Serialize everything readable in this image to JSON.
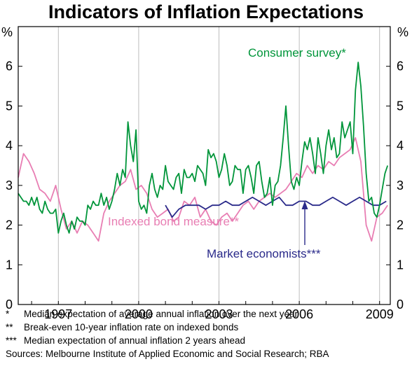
{
  "chart_data": {
    "type": "line",
    "title": "Indicators of Inflation Expectations",
    "ylabel_left": "%",
    "ylabel_right": "%",
    "ylim": [
      0,
      7
    ],
    "yticks": [
      0,
      1,
      2,
      3,
      4,
      5,
      6
    ],
    "xlim": [
      1995.5,
      2009.4
    ],
    "xticks": [
      "1997",
      "2000",
      "2003",
      "2006",
      "2009"
    ],
    "grid": "vertical year lines",
    "series": [
      {
        "name": "Consumer survey*",
        "color": "#00953a",
        "x": [
          1995.5,
          1995.6,
          1995.7,
          1995.8,
          1995.9,
          1996.0,
          1996.1,
          1996.2,
          1996.3,
          1996.4,
          1996.5,
          1996.6,
          1996.7,
          1996.8,
          1996.9,
          1997.0,
          1997.1,
          1997.2,
          1997.3,
          1997.4,
          1997.5,
          1997.6,
          1997.7,
          1997.8,
          1997.9,
          1998.0,
          1998.1,
          1998.2,
          1998.3,
          1998.4,
          1998.5,
          1998.6,
          1998.7,
          1998.8,
          1998.9,
          1999.0,
          1999.1,
          1999.2,
          1999.3,
          1999.4,
          1999.5,
          1999.6,
          1999.7,
          1999.8,
          1999.9,
          2000.0,
          2000.1,
          2000.2,
          2000.3,
          2000.4,
          2000.5,
          2000.6,
          2000.7,
          2000.8,
          2000.9,
          2001.0,
          2001.1,
          2001.2,
          2001.3,
          2001.4,
          2001.5,
          2001.6,
          2001.7,
          2001.8,
          2001.9,
          2002.0,
          2002.1,
          2002.2,
          2002.3,
          2002.4,
          2002.5,
          2002.6,
          2002.7,
          2002.8,
          2002.9,
          2003.0,
          2003.1,
          2003.2,
          2003.3,
          2003.4,
          2003.5,
          2003.6,
          2003.7,
          2003.8,
          2003.9,
          2004.0,
          2004.1,
          2004.2,
          2004.3,
          2004.4,
          2004.5,
          2004.6,
          2004.7,
          2004.8,
          2004.9,
          2005.0,
          2005.1,
          2005.2,
          2005.3,
          2005.4,
          2005.5,
          2005.6,
          2005.7,
          2005.8,
          2005.9,
          2006.0,
          2006.1,
          2006.2,
          2006.3,
          2006.4,
          2006.5,
          2006.6,
          2006.7,
          2006.8,
          2006.9,
          2007.0,
          2007.1,
          2007.2,
          2007.3,
          2007.4,
          2007.5,
          2007.6,
          2007.7,
          2007.8,
          2007.9,
          2008.0,
          2008.1,
          2008.2,
          2008.3,
          2008.4,
          2008.5,
          2008.6,
          2008.7,
          2008.8,
          2008.9,
          2009.0,
          2009.1,
          2009.2,
          2009.3
        ],
        "values": [
          2.8,
          2.7,
          2.6,
          2.6,
          2.5,
          2.7,
          2.5,
          2.7,
          2.4,
          2.3,
          2.6,
          2.4,
          2.3,
          2.3,
          2.4,
          1.8,
          2.1,
          2.3,
          2.0,
          1.8,
          2.1,
          1.9,
          2.2,
          2.1,
          2.1,
          2.0,
          2.5,
          2.4,
          2.6,
          2.5,
          2.5,
          2.8,
          2.5,
          2.7,
          2.4,
          2.6,
          2.9,
          3.3,
          3.0,
          3.4,
          3.2,
          4.6,
          4.0,
          3.6,
          4.4,
          2.6,
          2.4,
          2.5,
          2.3,
          3.0,
          3.3,
          2.9,
          2.7,
          3.0,
          2.9,
          3.5,
          3.1,
          3.0,
          2.9,
          3.2,
          3.3,
          2.8,
          3.4,
          3.2,
          3.2,
          3.3,
          3.1,
          3.5,
          3.4,
          3.3,
          3.0,
          3.9,
          3.7,
          3.8,
          3.6,
          3.2,
          3.4,
          3.8,
          3.5,
          3.0,
          3.1,
          3.5,
          3.4,
          3.4,
          2.8,
          3.4,
          3.5,
          3.2,
          2.8,
          3.5,
          3.6,
          3.1,
          2.7,
          2.8,
          3.2,
          2.5,
          3.0,
          3.1,
          3.5,
          4.2,
          5.0,
          4.0,
          3.1,
          2.9,
          3.2,
          3.0,
          3.6,
          4.1,
          3.9,
          4.2,
          3.8,
          3.3,
          4.2,
          3.8,
          3.3,
          4.0,
          4.4,
          3.9,
          4.2,
          3.7,
          3.8,
          4.6,
          4.2,
          4.4,
          4.6,
          3.8,
          5.4,
          6.1,
          5.5,
          4.5,
          3.3,
          2.6,
          2.7,
          2.3,
          2.2,
          2.5,
          2.9,
          3.3,
          3.5
        ]
      },
      {
        "name": "Indexed bond measure**",
        "color": "#e87eb3",
        "x": [
          1995.5,
          1995.7,
          1995.9,
          1996.1,
          1996.3,
          1996.5,
          1996.7,
          1996.9,
          1997.1,
          1997.3,
          1997.5,
          1997.7,
          1997.9,
          1998.1,
          1998.3,
          1998.5,
          1998.7,
          1998.9,
          1999.1,
          1999.3,
          1999.5,
          1999.7,
          1999.9,
          2000.1,
          2000.3,
          2000.5,
          2000.7,
          2000.9,
          2001.1,
          2001.3,
          2001.5,
          2001.7,
          2001.9,
          2002.1,
          2002.3,
          2002.5,
          2002.7,
          2002.9,
          2003.1,
          2003.3,
          2003.5,
          2003.7,
          2003.9,
          2004.1,
          2004.3,
          2004.5,
          2004.7,
          2004.9,
          2005.1,
          2005.3,
          2005.5,
          2005.7,
          2005.9,
          2006.1,
          2006.3,
          2006.5,
          2006.7,
          2006.9,
          2007.1,
          2007.3,
          2007.5,
          2007.7,
          2007.9,
          2008.1,
          2008.3,
          2008.5,
          2008.7,
          2008.9,
          2009.1,
          2009.3
        ],
        "values": [
          3.2,
          3.8,
          3.6,
          3.3,
          2.9,
          2.8,
          2.6,
          3.0,
          2.4,
          1.9,
          2.1,
          1.8,
          2.1,
          2.0,
          1.8,
          1.6,
          2.3,
          2.6,
          2.8,
          3.0,
          3.1,
          3.4,
          2.9,
          3.0,
          2.8,
          2.4,
          2.2,
          2.3,
          2.4,
          2.1,
          2.2,
          2.6,
          2.5,
          2.7,
          2.2,
          2.4,
          2.1,
          2.0,
          2.2,
          2.3,
          2.1,
          2.3,
          2.5,
          2.6,
          2.4,
          2.6,
          2.7,
          2.8,
          2.7,
          2.8,
          2.9,
          3.1,
          3.3,
          3.2,
          3.5,
          3.3,
          3.5,
          3.4,
          3.6,
          3.5,
          3.7,
          3.8,
          3.9,
          4.2,
          3.6,
          2.0,
          1.6,
          2.2,
          2.3,
          2.5
        ]
      },
      {
        "name": "Market economists***",
        "color": "#2a2a8a",
        "x": [
          2001.0,
          2001.25,
          2001.5,
          2001.75,
          2002.0,
          2002.25,
          2002.5,
          2002.75,
          2003.0,
          2003.25,
          2003.5,
          2003.75,
          2004.0,
          2004.25,
          2004.5,
          2004.75,
          2005.0,
          2005.25,
          2005.5,
          2005.75,
          2006.0,
          2006.25,
          2006.5,
          2006.75,
          2007.0,
          2007.25,
          2007.5,
          2007.75,
          2008.0,
          2008.25,
          2008.5,
          2008.75,
          2009.0,
          2009.25
        ],
        "values": [
          2.5,
          2.2,
          2.4,
          2.5,
          2.5,
          2.5,
          2.4,
          2.5,
          2.5,
          2.6,
          2.5,
          2.5,
          2.6,
          2.7,
          2.6,
          2.5,
          2.6,
          2.7,
          2.5,
          2.5,
          2.6,
          2.6,
          2.5,
          2.5,
          2.6,
          2.7,
          2.6,
          2.5,
          2.6,
          2.7,
          2.6,
          2.5,
          2.5,
          2.6
        ]
      }
    ],
    "annotations": [
      {
        "text": "Consumer survey*",
        "color": "#00953a"
      },
      {
        "text": "Indexed bond measure**",
        "color": "#e87eb3"
      },
      {
        "text": "Market economists***",
        "color": "#2a2a8a"
      }
    ]
  },
  "footnotes": [
    {
      "mark": "*",
      "text": "Median expectation of average annual inflation over the next year"
    },
    {
      "mark": "**",
      "text": "Break-even 10-year inflation rate on indexed bonds"
    },
    {
      "mark": "***",
      "text": "Median expectation of annual inflation 2 years ahead"
    }
  ],
  "sources": "Sources: Melbourne Institute of Applied Economic and Social Research; RBA"
}
